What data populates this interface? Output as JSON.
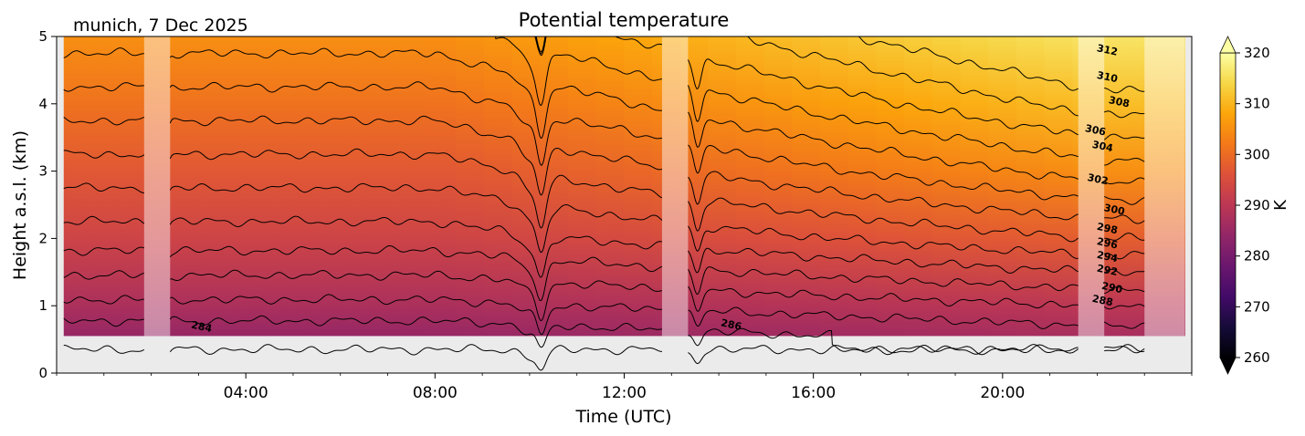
{
  "chart_data": {
    "type": "heatmap",
    "title": "Potential temperature",
    "subtitle": "munich, 7 Dec 2025",
    "xlabel": "Time (UTC)",
    "ylabel": "Height a.s.l. (km)",
    "xlim_hours": [
      0,
      24
    ],
    "ylim_km": [
      0,
      5
    ],
    "x_ticks": [
      {
        "hour": 4,
        "label": "04:00"
      },
      {
        "hour": 8,
        "label": "08:00"
      },
      {
        "hour": 12,
        "label": "12:00"
      },
      {
        "hour": 16,
        "label": "16:00"
      },
      {
        "hour": 20,
        "label": "20:00"
      }
    ],
    "y_ticks": [
      0,
      1,
      2,
      3,
      4,
      5
    ],
    "data_extent": {
      "x_start_hour": 0.15,
      "x_end_hour": 23.85,
      "y_bottom_km": 0.55,
      "y_top_km": 5.0
    },
    "colorbar": {
      "label": "K",
      "min": 260,
      "max": 320,
      "ticks": [
        260,
        270,
        280,
        290,
        300,
        310,
        320
      ],
      "extend": "both",
      "colormap": "inferno"
    },
    "missing_periods_hours": [
      [
        1.85,
        2.4
      ],
      [
        12.8,
        13.35
      ],
      [
        21.6,
        22.15
      ],
      [
        23.0,
        23.85
      ]
    ],
    "isentropes": [
      {
        "theta": 284,
        "label": "284",
        "label_x_hour": 3.05,
        "label_y_km": 0.64
      },
      {
        "theta": 286,
        "label": "286",
        "label_x_hour": 14.25,
        "label_y_km": 0.67
      },
      {
        "theta": 288,
        "label": "288",
        "label_x_hour": 22.1,
        "label_y_km": 1.03
      },
      {
        "theta": 290,
        "label": "290",
        "label_x_hour": 22.3,
        "label_y_km": 1.22
      },
      {
        "theta": 292,
        "label": "292",
        "label_x_hour": 22.2,
        "label_y_km": 1.48
      },
      {
        "theta": 294,
        "label": "294",
        "label_x_hour": 22.2,
        "label_y_km": 1.68
      },
      {
        "theta": 296,
        "label": "296",
        "label_x_hour": 22.2,
        "label_y_km": 1.88
      },
      {
        "theta": 298,
        "label": "298",
        "label_x_hour": 22.2,
        "label_y_km": 2.1
      },
      {
        "theta": 300,
        "label": "300",
        "label_x_hour": 22.35,
        "label_y_km": 2.38
      },
      {
        "theta": 302,
        "label": "302",
        "label_x_hour": 22.0,
        "label_y_km": 2.83
      },
      {
        "theta": 304,
        "label": "304",
        "label_x_hour": 22.1,
        "label_y_km": 3.32
      },
      {
        "theta": 306,
        "label": "306",
        "label_x_hour": 21.95,
        "label_y_km": 3.56
      },
      {
        "theta": 308,
        "label": "308",
        "label_x_hour": 22.45,
        "label_y_km": 3.98
      },
      {
        "theta": 310,
        "label": "310",
        "label_x_hour": 22.2,
        "label_y_km": 4.35
      },
      {
        "theta": 312,
        "label": "312",
        "label_x_hour": 22.2,
        "label_y_km": 4.75
      }
    ],
    "background_theta_profile": {
      "height_km": [
        0.55,
        1.0,
        2.0,
        3.0,
        4.0,
        5.0
      ],
      "theta_K_morning": [
        284.5,
        287.5,
        293,
        297,
        301,
        305
      ],
      "theta_K_evening": [
        287,
        290,
        298,
        305,
        311,
        316
      ]
    }
  }
}
